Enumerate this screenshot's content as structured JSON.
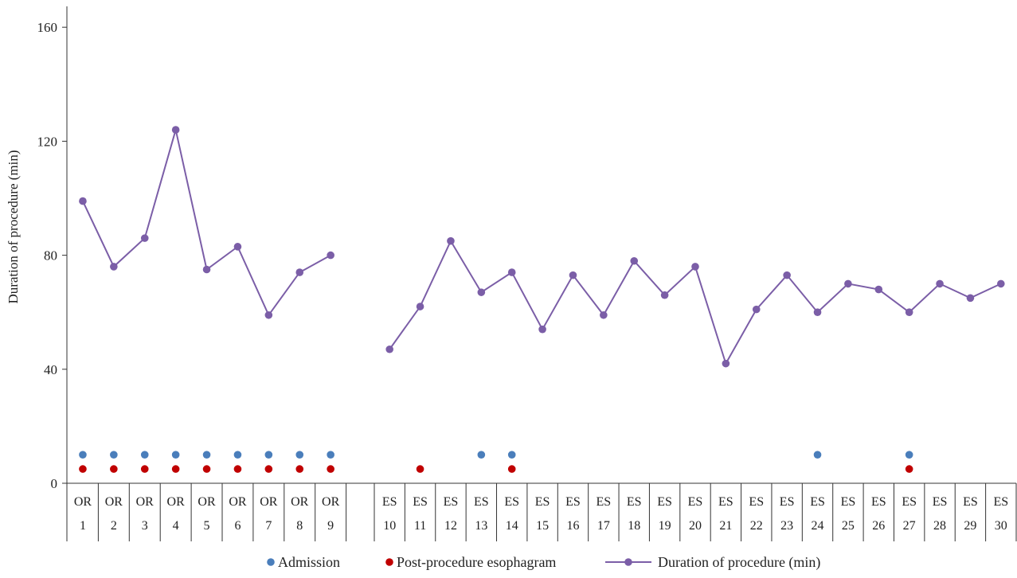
{
  "chart_data": {
    "type": "line",
    "title": "",
    "ylabel": "Duration of procedure (min)",
    "xlabel": "",
    "ylim": [
      0,
      168
    ],
    "yticks": [
      0,
      40,
      80,
      120,
      160
    ],
    "grid": false,
    "legend_position": "bottom",
    "categories": [
      {
        "group": "OR",
        "num": "1"
      },
      {
        "group": "OR",
        "num": "2"
      },
      {
        "group": "OR",
        "num": "3"
      },
      {
        "group": "OR",
        "num": "4"
      },
      {
        "group": "OR",
        "num": "5"
      },
      {
        "group": "OR",
        "num": "6"
      },
      {
        "group": "OR",
        "num": "7"
      },
      {
        "group": "OR",
        "num": "8"
      },
      {
        "group": "OR",
        "num": "9"
      },
      {
        "group": "ES",
        "num": "10"
      },
      {
        "group": "ES",
        "num": "11"
      },
      {
        "group": "ES",
        "num": "12"
      },
      {
        "group": "ES",
        "num": "13"
      },
      {
        "group": "ES",
        "num": "14"
      },
      {
        "group": "ES",
        "num": "15"
      },
      {
        "group": "ES",
        "num": "16"
      },
      {
        "group": "ES",
        "num": "17"
      },
      {
        "group": "ES",
        "num": "18"
      },
      {
        "group": "ES",
        "num": "19"
      },
      {
        "group": "ES",
        "num": "20"
      },
      {
        "group": "ES",
        "num": "21"
      },
      {
        "group": "ES",
        "num": "22"
      },
      {
        "group": "ES",
        "num": "23"
      },
      {
        "group": "ES",
        "num": "24"
      },
      {
        "group": "ES",
        "num": "25"
      },
      {
        "group": "ES",
        "num": "26"
      },
      {
        "group": "ES",
        "num": "27"
      },
      {
        "group": "ES",
        "num": "28"
      },
      {
        "group": "ES",
        "num": "29"
      },
      {
        "group": "ES",
        "num": "30"
      }
    ],
    "series": [
      {
        "name": "Admission",
        "kind": "marker",
        "color": "#4a7ebb",
        "marker_value": 10,
        "cases": [
          1,
          2,
          3,
          4,
          5,
          6,
          7,
          8,
          9,
          13,
          14,
          24,
          27
        ]
      },
      {
        "name": "Post-procedure esophagram",
        "kind": "marker",
        "color": "#c00000",
        "marker_value": 5,
        "cases": [
          1,
          2,
          3,
          4,
          5,
          6,
          7,
          8,
          9,
          11,
          14,
          27
        ]
      },
      {
        "name": "Duration of procedure (min)",
        "kind": "line",
        "color": "#7b5ea7",
        "segments": [
          {
            "cases": [
              1,
              2,
              3,
              4,
              5,
              6,
              7,
              8,
              9
            ],
            "values": [
              99,
              76,
              86,
              124,
              75,
              83,
              59,
              74,
              80
            ]
          },
          {
            "cases": [
              10,
              11,
              12,
              13,
              14,
              15,
              16,
              17,
              18,
              19,
              20,
              21,
              22,
              23,
              24,
              25,
              26,
              27,
              28,
              29,
              30
            ],
            "values": [
              47,
              62,
              85,
              67,
              74,
              54,
              73,
              59,
              78,
              66,
              76,
              42,
              61,
              73,
              60,
              70,
              68,
              60,
              70,
              65,
              70
            ]
          }
        ]
      }
    ]
  }
}
